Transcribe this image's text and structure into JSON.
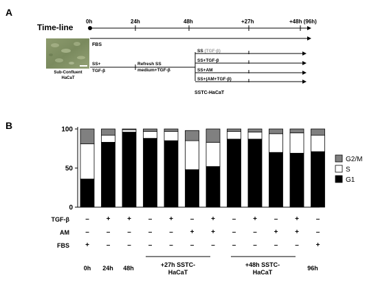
{
  "panel_a": {
    "label": "A",
    "timeline_title": "Time-line",
    "time_points": [
      "0h",
      "24h",
      "48h",
      "+27h",
      "+48h (96h)"
    ],
    "fbs_label": "FBS",
    "photo_caption_line1": "Sub-Confluent",
    "photo_caption_line2": "HaCaT",
    "ss_tgf_line1": "SS+",
    "ss_tgf_line2": "TGF-β",
    "refresh_line1": "Refresh SS",
    "refresh_line2": "medium+TGF-β",
    "branches": [
      {
        "prefix": "SS ",
        "suffix": "(TGF-β)",
        "suffix_color": "#9a9a9a"
      },
      {
        "prefix": "SS+TGF-β",
        "suffix": ""
      },
      {
        "prefix": "SS+AM",
        "suffix": ""
      },
      {
        "prefix": "SS+(AM+TGF-β)",
        "suffix": ""
      }
    ],
    "sstc_label": "SSTC-HaCaT"
  },
  "panel_b": {
    "label": "B",
    "row_labels": [
      "TGF-β",
      "AM",
      "FBS"
    ],
    "conditions": [
      {
        "tgf": "–",
        "am": "–",
        "fbs": "+"
      },
      {
        "tgf": "+",
        "am": "–",
        "fbs": "–"
      },
      {
        "tgf": "+",
        "am": "–",
        "fbs": "–"
      },
      {
        "tgf": "–",
        "am": "–",
        "fbs": "–"
      },
      {
        "tgf": "+",
        "am": "–",
        "fbs": "–"
      },
      {
        "tgf": "–",
        "am": "+",
        "fbs": "–"
      },
      {
        "tgf": "+",
        "am": "+",
        "fbs": "–"
      },
      {
        "tgf": "–",
        "am": "–",
        "fbs": "–"
      },
      {
        "tgf": "+",
        "am": "–",
        "fbs": "–"
      },
      {
        "tgf": "–",
        "am": "+",
        "fbs": "–"
      },
      {
        "tgf": "+",
        "am": "+",
        "fbs": "–"
      },
      {
        "tgf": "–",
        "am": "–",
        "fbs": "+"
      }
    ],
    "group_labels": {
      "h0": "0h",
      "h24": "24h",
      "h48": "48h",
      "sstc27_line1": "+27h SSTC-",
      "sstc27_line2": "HaCaT",
      "sstc48_line1": "+48h SSTC-",
      "sstc48_line2": "HaCaT",
      "h96": "96h"
    }
  },
  "chart_data": {
    "type": "bar",
    "stacked": true,
    "categories": [
      "0h",
      "24h",
      "48h",
      "+27h SS",
      "+27h SS+TGF-β",
      "+27h SS+AM",
      "+27h SS+(AM+TGF-β)",
      "+48h SS",
      "+48h SS+TGF-β",
      "+48h SS+AM",
      "+48h SS+(AM+TGF-β)",
      "96h"
    ],
    "series": [
      {
        "name": "G1",
        "color": "#000000",
        "values": [
          36,
          83,
          96,
          88,
          85,
          48,
          52,
          87,
          87,
          70,
          69,
          71
        ]
      },
      {
        "name": "S",
        "color": "#ffffff",
        "values": [
          45,
          9,
          3,
          9,
          12,
          37,
          31,
          10,
          9,
          24,
          26,
          21
        ]
      },
      {
        "name": "G2/M",
        "color": "#808080",
        "values": [
          19,
          8,
          1,
          3,
          3,
          13,
          17,
          3,
          4,
          6,
          5,
          8
        ]
      }
    ],
    "yticks": [
      0,
      50,
      100
    ],
    "ylim": [
      0,
      100
    ],
    "legend_position": "right",
    "grid": false
  }
}
